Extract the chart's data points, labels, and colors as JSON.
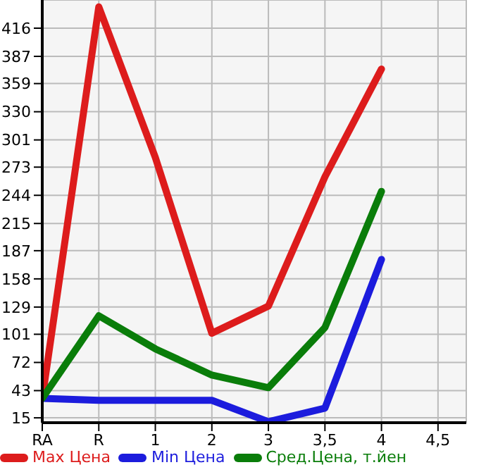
{
  "chart_data": {
    "type": "line",
    "categories": [
      "RA",
      "R",
      "1",
      "2",
      "3",
      "3,5",
      "4",
      "4,5"
    ],
    "series": [
      {
        "name": "Max Цена",
        "color": "#dd1c1c",
        "values": [
          35,
          438,
          283,
          102,
          130,
          263,
          374,
          null
        ]
      },
      {
        "name": "Min Цена",
        "color": "#1c1cdd",
        "values": [
          35,
          33,
          33,
          33,
          11,
          25,
          178,
          null
        ]
      },
      {
        "name": "Сред.Цена, т.йен",
        "color": "#0a7d0a",
        "values": [
          35,
          120,
          86,
          59,
          46,
          108,
          248,
          null
        ]
      }
    ],
    "ylim": [
      10,
      445
    ],
    "yticks": [
      15,
      43,
      72,
      101,
      129,
      158,
      187,
      215,
      244,
      273,
      301,
      330,
      359,
      387,
      416
    ],
    "grid": true,
    "legend": "bottom",
    "marker": "none",
    "line_style": "solid"
  }
}
